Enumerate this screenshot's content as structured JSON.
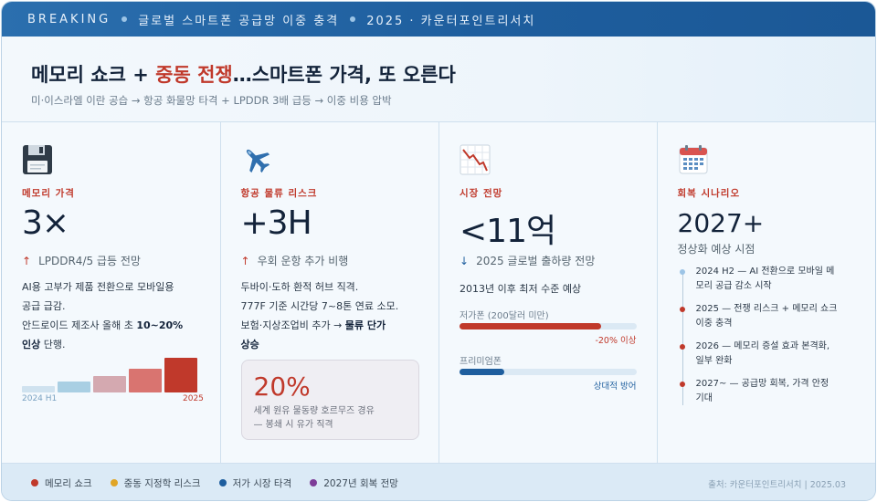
{
  "banner": {
    "breaking": "BREAKING",
    "topic": "글로벌 스마트폰 공급망 이중 충격",
    "meta": "2025 · 카운터포인트리서치"
  },
  "header": {
    "title_part1": "메모리 쇼크 + ",
    "title_accent": "중동 전쟁",
    "title_part2": "…스마트폰 가격, 또 오른다",
    "subtitle": "미·이스라엘 이란 공습 → 항공 화물망 타격 + LPDDR 3배 급등 → 이중 비용 압박"
  },
  "columns": [
    {
      "icon": "floppy-disk-icon",
      "label": "메모리 가격",
      "value": "3×",
      "sub_arrow": "↑",
      "sub": "LPDDR4/5 급등 전망",
      "body_line1": "AI용 고부가 제품 전환으로 모바일용",
      "body_line2": "공급 급감.",
      "body_line3": "안드로이드 제조사 올해 초 ",
      "body_bold": "10~20%",
      "body_line4_bold": "인상",
      "body_line4": " 단행.",
      "chart_start_label": "2024 H1",
      "chart_end_label": "2025",
      "chart_levels": [
        0.18,
        0.3,
        0.45,
        0.65,
        0.95
      ],
      "chart_colors": [
        "#cfe2ef",
        "#a9cfe3",
        "#d4a9b0",
        "#d97470",
        "#c0392b"
      ]
    },
    {
      "icon": "airplane-icon",
      "label": "항공 물류 리스크",
      "value": "+3H",
      "sub_arrow": "↑",
      "sub": "우회 운항 추가 비행",
      "body_line1": "두바이·도하 환적 허브 직격.",
      "body_line2": "777F 기준 시간당 7~8톤 연료 소모.",
      "body_line3": "보험·지상조업비 추가 → ",
      "body_bold": "물류 단가",
      "body_line4_bold": "상승",
      "callout_value": "20%",
      "callout_line1": "세계 원유 물동량 호르무즈 경유",
      "callout_line2": "— 봉쇄 시 유가 직격"
    },
    {
      "icon": "chart-down-icon",
      "label": "시장 전망",
      "value": "<11억",
      "sub_arrow": "↓",
      "sub": "2025 글로벌 출하량 전망",
      "body": "2013년 이후 최저 수준 예상",
      "bars": [
        {
          "label": "저가폰 (200달러 미만)",
          "level": 0.8,
          "color": "#c0392b",
          "note": "-20% 이상",
          "note_color": "#c0392b"
        },
        {
          "label": "프리미엄폰",
          "level": 0.25,
          "color": "#1e5e9e",
          "note": "상대적 방어",
          "note_color": "#1e5e9e"
        }
      ]
    },
    {
      "icon": "calendar-icon",
      "label": "회복 시나리오",
      "value": "2027+",
      "sub": "정상화 예상 시점",
      "timeline": [
        {
          "text1": "2024 H2 — AI 전환으로 모바일 메",
          "text2": "모리 공급 감소 시작",
          "color": "#9cc4e6"
        },
        {
          "text1": "2025 — 전쟁 리스크 + 메모리 쇼크",
          "text2": "이중 충격",
          "color": "#c0392b"
        },
        {
          "text1": "2026 — 메모리 증설 효과 본격화,",
          "text2": "일부 완화",
          "color": "#c0392b"
        },
        {
          "text1": "2027~ — 공급망 회복, 가격 안정",
          "text2": "기대",
          "color": "#c0392b"
        }
      ]
    }
  ],
  "footer": {
    "legend": [
      {
        "label": "메모리 쇼크",
        "color": "#c0392b"
      },
      {
        "label": "중동 지정학 리스크",
        "color": "#e0a526"
      },
      {
        "label": "저가 시장 타격",
        "color": "#1e5e9e"
      },
      {
        "label": "2027년 회복 전망",
        "color": "#7d3c98"
      }
    ],
    "source": "출처: 카운터포인트리서치 | 2025.03"
  }
}
